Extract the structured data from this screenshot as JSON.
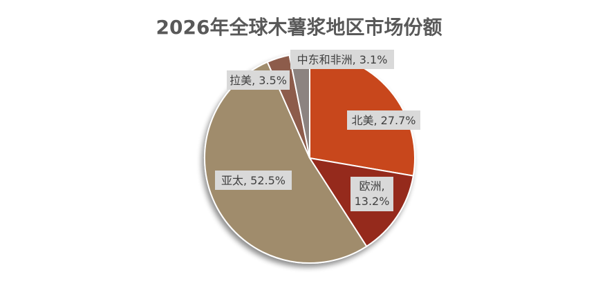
{
  "chart_data": {
    "type": "pie",
    "title": "2026年全球木薯浆地区市场份额",
    "slices": [
      {
        "name": "北美",
        "value": 27.7,
        "label": "北美, 27.7%",
        "color": "#C8461A"
      },
      {
        "name": "欧洲",
        "value": 13.2,
        "label": "欧洲, 13.2%",
        "color": "#952A1F"
      },
      {
        "name": "亚太",
        "value": 52.5,
        "label": "亚太, 52.5%",
        "color": "#A08C6C"
      },
      {
        "name": "拉美",
        "value": 3.5,
        "label": "拉美, 3.5%",
        "color": "#8D5B4C"
      },
      {
        "name": "中东和非洲",
        "value": 3.1,
        "label": "中东和非洲, 3.1%",
        "color": "#8C8380"
      }
    ],
    "legend": "none",
    "data_labels": "category-and-percent"
  }
}
